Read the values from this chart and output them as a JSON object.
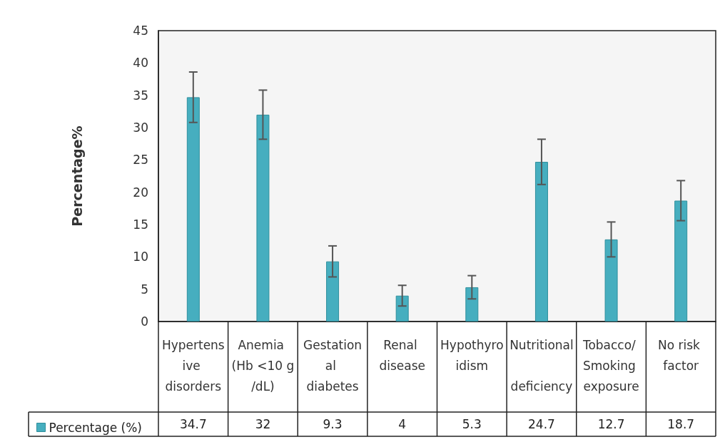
{
  "chart_data": {
    "type": "bar",
    "ylabel": "Percentage%",
    "categories": [
      "Hypertensive disorders",
      "Anemia (Hb <10 g/dL)",
      "Gestational diabetes",
      "Renal disease",
      "Hypothyroidism",
      "Nutritional deficiency",
      "Tobacco/ Smoking exposure",
      "No risk factor"
    ],
    "series": [
      {
        "name": "Percentage (%)",
        "color": "#46aebf",
        "values": [
          34.7,
          32,
          9.3,
          4,
          5.3,
          24.7,
          12.7,
          18.7
        ],
        "errors": [
          3.9,
          3.8,
          2.4,
          1.6,
          1.8,
          3.5,
          2.7,
          3.1
        ]
      }
    ],
    "ylim": [
      0,
      45
    ],
    "yticks": [
      0,
      5,
      10,
      15,
      20,
      25,
      30,
      35,
      40,
      45
    ],
    "grid": false,
    "legend": "bottom left",
    "data_labels": true
  }
}
